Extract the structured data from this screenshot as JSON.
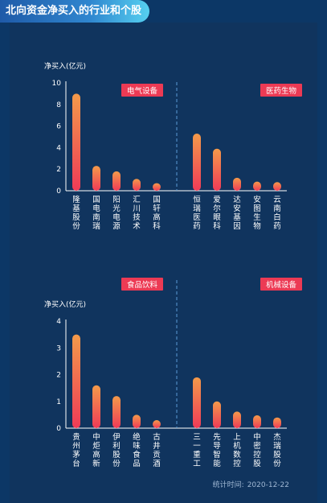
{
  "header": {
    "title": "北向资金净买入的行业和个股"
  },
  "footer": {
    "label": "统计时间:",
    "date": "2020-12-22"
  },
  "colors": {
    "bar_top": "#f39a4a",
    "bar_bottom": "#ef3b57",
    "tag_bg": "#ec3a54",
    "axis": "#ffffff",
    "divider": "#5a9ad6"
  },
  "chart_data": [
    {
      "type": "bar",
      "ylabel": "净买入(亿元)",
      "ylim": [
        0,
        10
      ],
      "yticks": [
        0,
        2,
        4,
        6,
        8,
        10
      ],
      "groups": [
        {
          "sector": "电气设备",
          "categories": [
            "隆基股份",
            "国电南瑞",
            "阳光电源",
            "汇川技术",
            "国轩高科"
          ],
          "values": [
            9.0,
            2.3,
            1.8,
            1.1,
            0.7
          ]
        },
        {
          "sector": "医药生物",
          "categories": [
            "恒瑞医药",
            "爱尔眼科",
            "达安基因",
            "安图生物",
            "云南白药"
          ],
          "values": [
            5.3,
            3.9,
            1.2,
            0.85,
            0.8
          ]
        }
      ]
    },
    {
      "type": "bar",
      "ylabel": "净买入(亿元)",
      "ylim": [
        0,
        4
      ],
      "yticks": [
        0,
        1,
        2,
        3,
        4
      ],
      "groups": [
        {
          "sector": "食品饮料",
          "categories": [
            "贵州茅台",
            "中炬高新",
            "伊利股份",
            "绝味食品",
            "古井贡酒"
          ],
          "values": [
            3.5,
            1.6,
            1.2,
            0.5,
            0.3
          ]
        },
        {
          "sector": "机械设备",
          "categories": [
            "三一重工",
            "先导智能",
            "上机数控",
            "中密控股",
            "杰瑞股份"
          ],
          "values": [
            1.9,
            1.0,
            0.62,
            0.48,
            0.4
          ]
        }
      ]
    }
  ]
}
